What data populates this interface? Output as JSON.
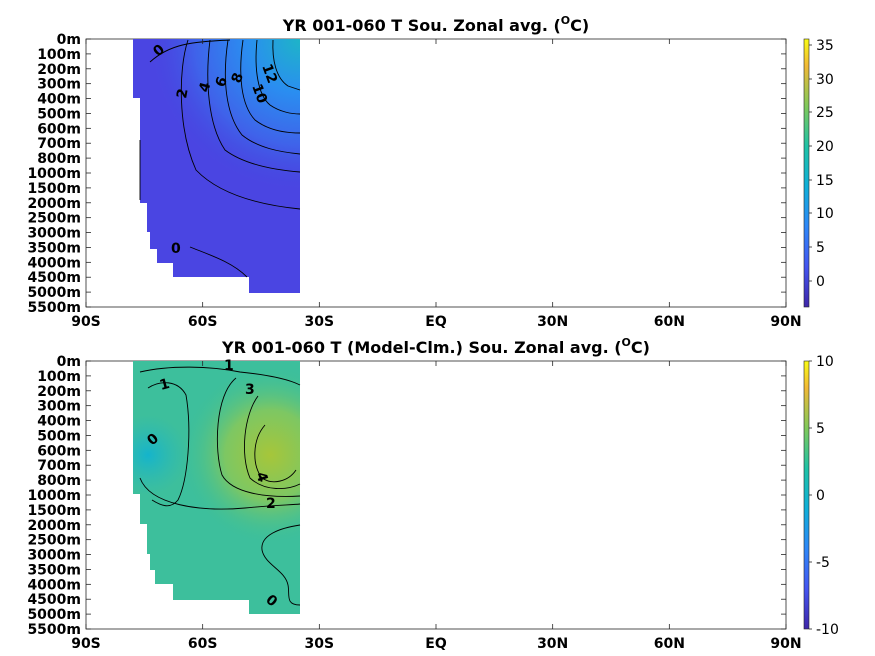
{
  "chart_data": [
    {
      "type": "heatmap",
      "title": "YR 001-060 T Sou. Zonal avg. (°C)",
      "title_main": "YR 001-060 T Sou. Zonal avg. (",
      "title_sup": "O",
      "title_tail": "C)",
      "x_ticks": [
        "90S",
        "60S",
        "30S",
        "EQ",
        "30N",
        "60N",
        "90N"
      ],
      "y_ticks": [
        "0m",
        "100m",
        "200m",
        "300m",
        "400m",
        "500m",
        "600m",
        "700m",
        "800m",
        "1000m",
        "1500m",
        "2000m",
        "2500m",
        "3000m",
        "3500m",
        "4000m",
        "4500m",
        "5000m",
        "5500m"
      ],
      "colorbar_ticks": [
        "0",
        "5",
        "10",
        "15",
        "20",
        "25",
        "30",
        "35"
      ],
      "clim": [
        -4,
        36
      ],
      "colormap": "parula",
      "contour_labels": [
        "0",
        "2",
        "4",
        "6",
        "8",
        "10",
        "12",
        "0"
      ],
      "data_extent": {
        "lat": [
          -78,
          -35
        ],
        "depth": [
          "0m",
          "5000m"
        ]
      }
    },
    {
      "type": "heatmap",
      "title": "YR 001-060 T (Model-Clm.) Sou. Zonal avg. (°C)",
      "title_main": "YR 001-060 T (Model-Clm.) Sou. Zonal avg. (",
      "title_sup": "O",
      "title_tail": "C)",
      "x_ticks": [
        "90S",
        "60S",
        "30S",
        "EQ",
        "30N",
        "60N",
        "90N"
      ],
      "y_ticks": [
        "0m",
        "100m",
        "200m",
        "300m",
        "400m",
        "500m",
        "600m",
        "700m",
        "800m",
        "1000m",
        "1500m",
        "2000m",
        "2500m",
        "3000m",
        "3500m",
        "4000m",
        "4500m",
        "5000m",
        "5500m"
      ],
      "colorbar_ticks": [
        "-10",
        "-5",
        "0",
        "5",
        "10"
      ],
      "clim": [
        -10,
        10
      ],
      "colormap": "parula",
      "contour_labels": [
        "1",
        "1",
        "3",
        "0",
        "4",
        "2",
        "0"
      ],
      "data_extent": {
        "lat": [
          -78,
          -35
        ],
        "depth": [
          "0m",
          "5000m"
        ]
      }
    }
  ]
}
